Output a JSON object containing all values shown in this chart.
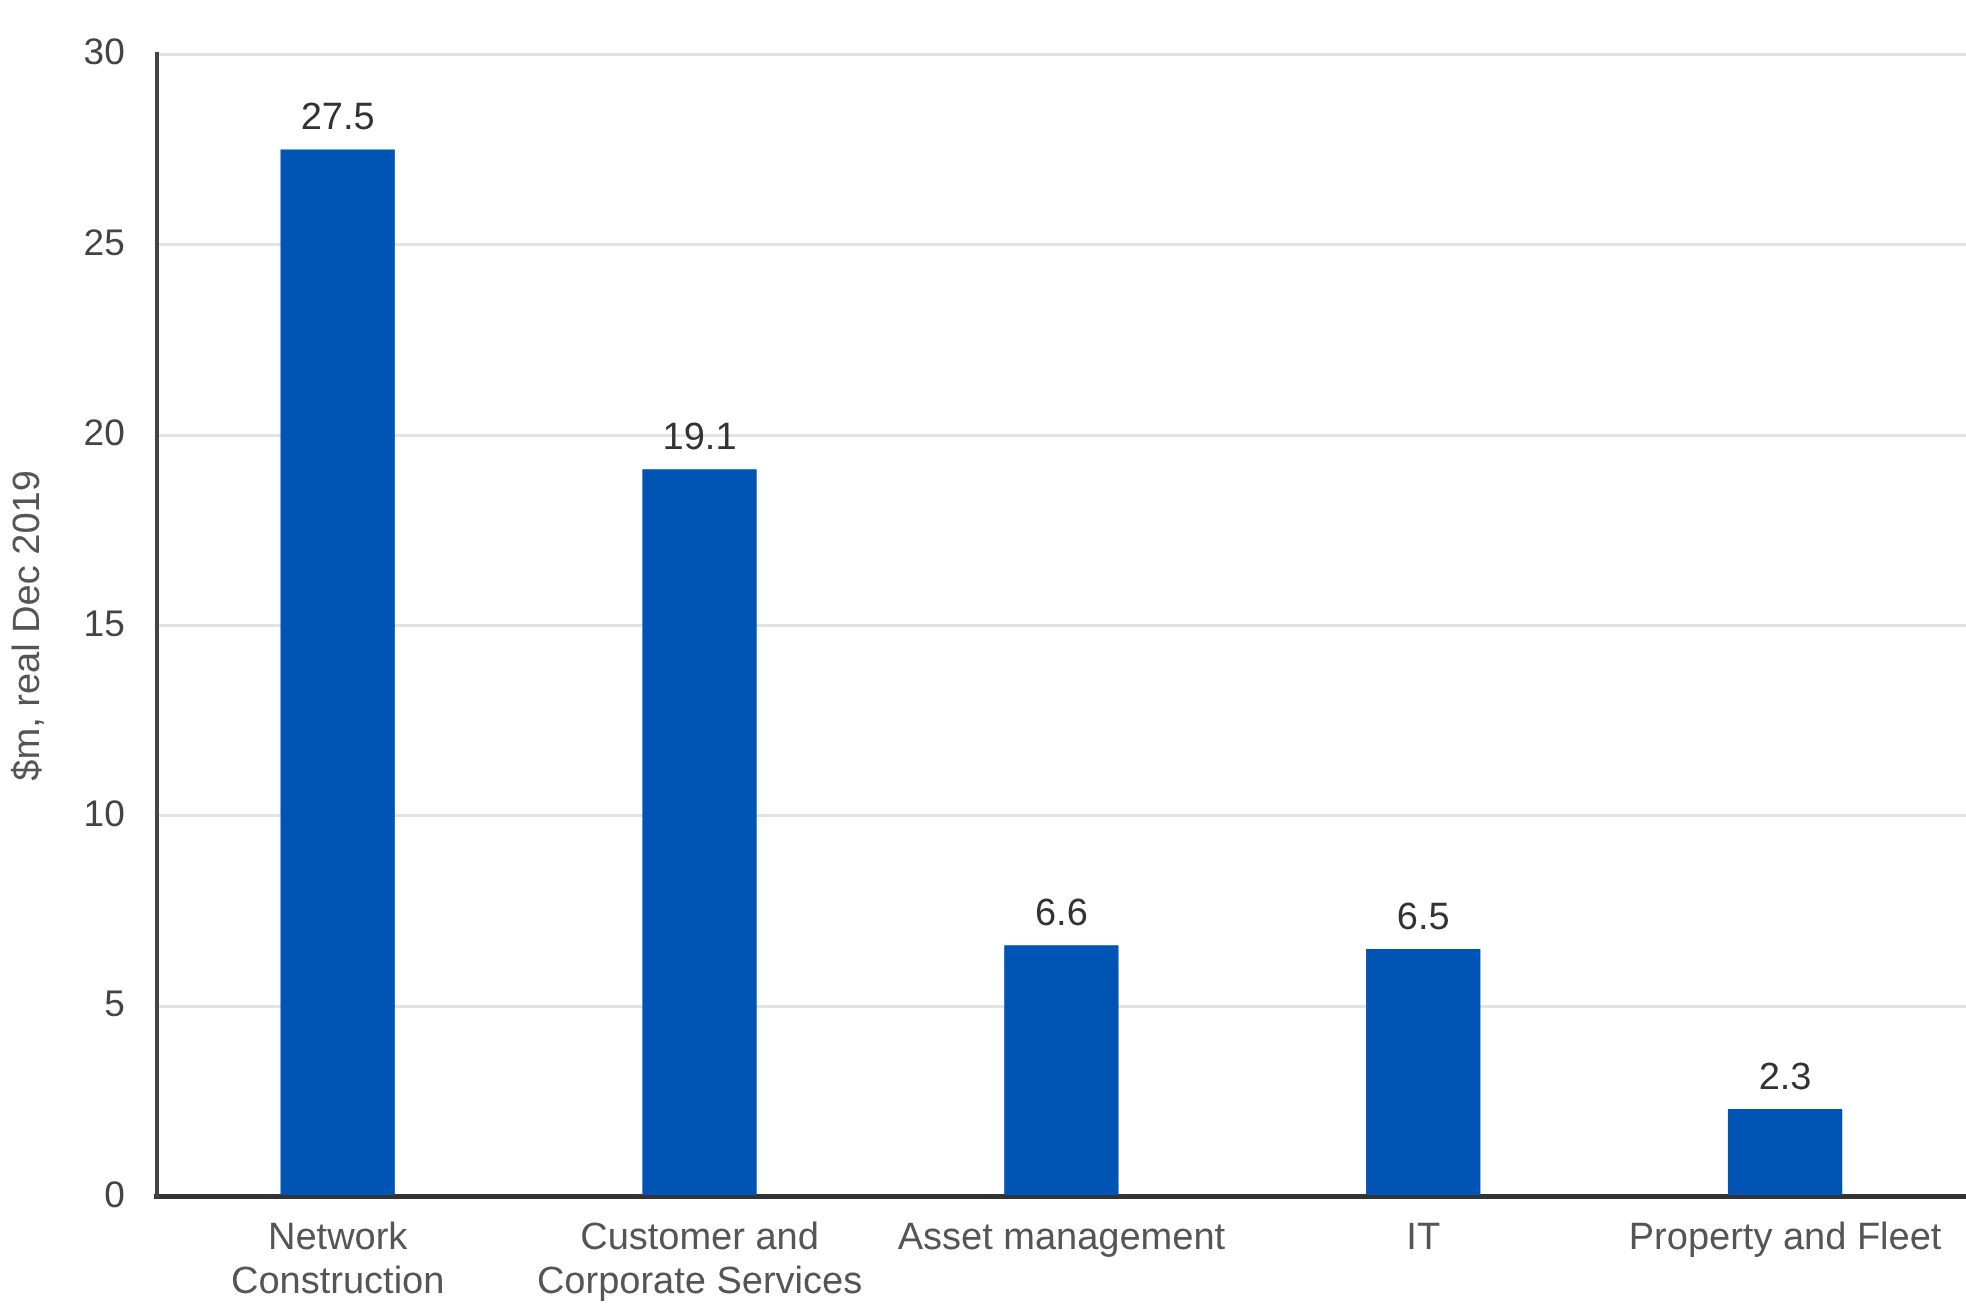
{
  "chart_data": {
    "type": "bar",
    "ylabel": "$m, real Dec 2019",
    "categories": [
      "Network Construction",
      "Customer and Corporate Services",
      "Asset management",
      "IT",
      "Property and Fleet"
    ],
    "values": [
      27.5,
      19.1,
      6.6,
      6.5,
      2.3
    ],
    "color": "#0055b4",
    "ylim": [
      0,
      30
    ],
    "yticks": [
      0,
      5,
      10,
      15,
      20,
      25,
      30
    ],
    "grid": "y",
    "legend": false,
    "data_labels": true
  }
}
